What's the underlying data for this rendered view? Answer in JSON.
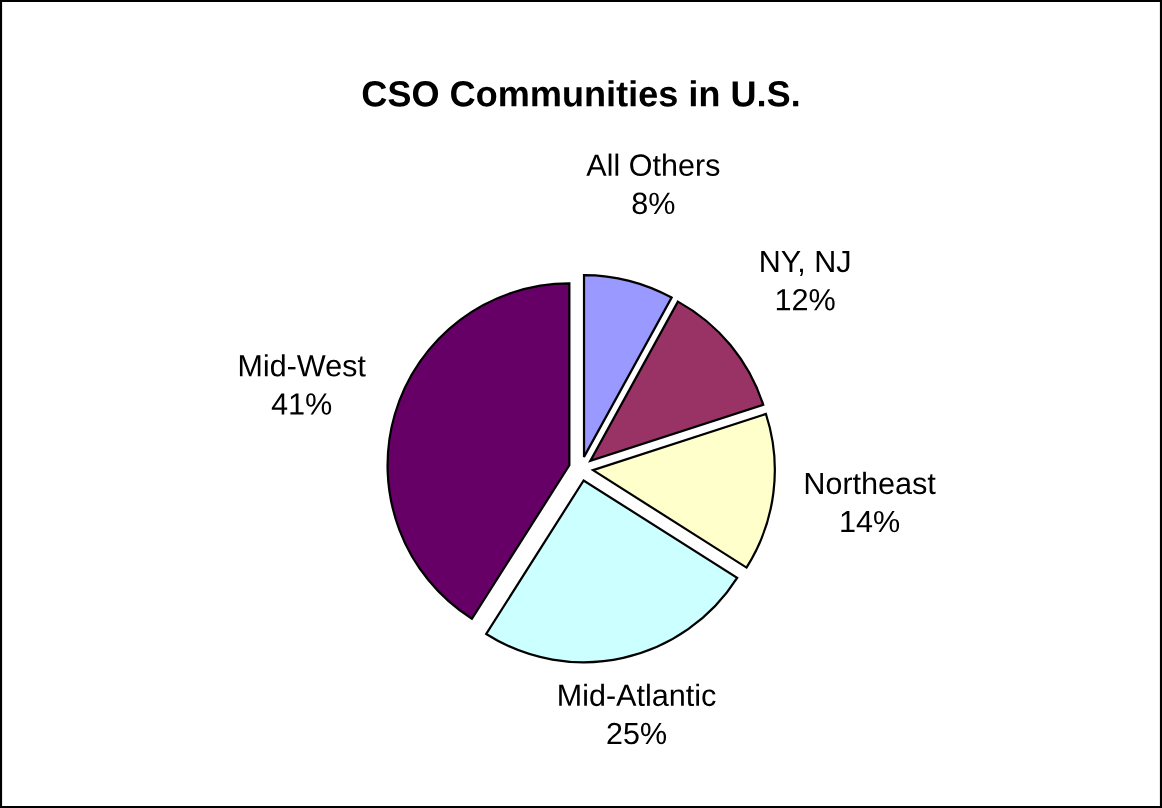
{
  "chart_data": {
    "type": "pie",
    "title": "CSO Communities in U.S.",
    "categories": [
      "All Others",
      "NY, NJ",
      "Northeast",
      "Mid-Atlantic",
      "Mid-West"
    ],
    "values": [
      8,
      12,
      14,
      25,
      41
    ],
    "value_labels": [
      "8%",
      "12%",
      "14%",
      "25%",
      "41%"
    ],
    "colors": [
      "#9999ff",
      "#993366",
      "#ffffcc",
      "#ccffff",
      "#660066"
    ],
    "legend": false
  }
}
